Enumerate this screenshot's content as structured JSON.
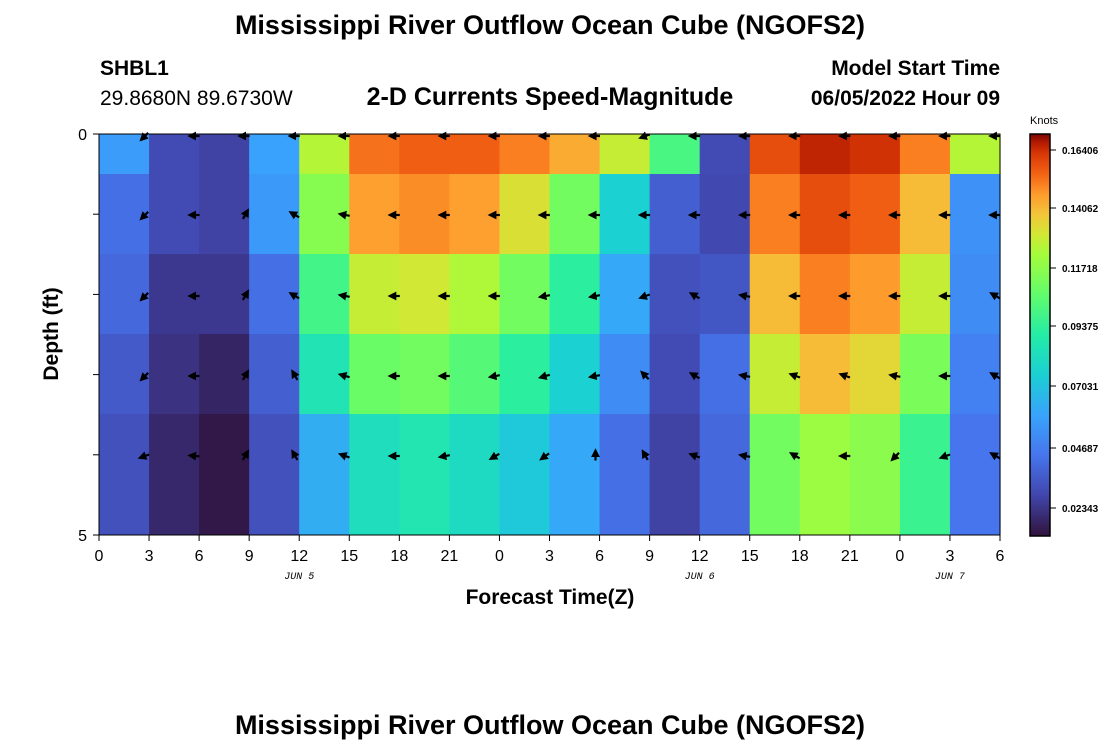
{
  "page": {
    "title": "Mississippi River Outflow Ocean Cube (NGOFS2)",
    "station_id": "SHBL1",
    "station_coords": "29.8680N  89.6730W",
    "subtitle": "2-D Currents Speed-Magnitude",
    "model_start_label": "Model Start Time",
    "model_start_value": "06/05/2022 Hour 09",
    "second_title": "Mississippi River Outflow Ocean Cube (NGOFS2)"
  },
  "chart_data": {
    "type": "heatmap",
    "xlabel": "Forecast Time(Z)",
    "ylabel": "Depth (ft)",
    "ylim": [
      0,
      5
    ],
    "x_tick_labels": [
      "0",
      "3",
      "6",
      "9",
      "12",
      "15",
      "18",
      "21",
      "0",
      "3",
      "6",
      "9",
      "12",
      "15",
      "18",
      "21",
      "0",
      "3",
      "6"
    ],
    "date_labels": [
      {
        "label": "JUN 5",
        "at_index": 4
      },
      {
        "label": "JUN 6",
        "at_index": 12
      },
      {
        "label": "JUN 7",
        "at_index": 17
      }
    ],
    "y_tick_labels": [
      "0",
      "",
      "",
      "",
      "",
      "5"
    ],
    "colorbar": {
      "unit": "Knots",
      "labels": [
        "0.16406",
        "0.14062",
        "0.11718",
        "0.09375",
        "0.07031",
        "0.04687",
        "0.02343"
      ],
      "min": 0.01,
      "max": 0.17
    },
    "depth_layers": 5,
    "time_columns": 18,
    "speed_knots": [
      [
        0.056,
        0.028,
        0.025,
        0.058,
        0.125,
        0.152,
        0.155,
        0.155,
        0.15,
        0.143,
        0.128,
        0.1,
        0.028,
        0.158,
        0.165,
        0.163,
        0.15,
        0.125
      ],
      [
        0.04,
        0.028,
        0.025,
        0.055,
        0.115,
        0.145,
        0.148,
        0.145,
        0.132,
        0.11,
        0.075,
        0.035,
        0.027,
        0.15,
        0.158,
        0.155,
        0.14,
        0.052
      ],
      [
        0.038,
        0.022,
        0.022,
        0.04,
        0.098,
        0.128,
        0.13,
        0.124,
        0.11,
        0.092,
        0.06,
        0.03,
        0.032,
        0.14,
        0.15,
        0.146,
        0.128,
        0.05
      ],
      [
        0.033,
        0.02,
        0.016,
        0.035,
        0.085,
        0.108,
        0.11,
        0.103,
        0.092,
        0.075,
        0.05,
        0.028,
        0.04,
        0.128,
        0.14,
        0.134,
        0.112,
        0.046
      ],
      [
        0.03,
        0.017,
        0.012,
        0.03,
        0.062,
        0.082,
        0.086,
        0.08,
        0.072,
        0.06,
        0.04,
        0.025,
        0.038,
        0.11,
        0.12,
        0.116,
        0.096,
        0.042
      ]
    ],
    "vector_direction_deg": [
      [
        225,
        180,
        180,
        180,
        180,
        180,
        180,
        180,
        180,
        180,
        200,
        180,
        180,
        180,
        180,
        180,
        180,
        180
      ],
      [
        225,
        180,
        60,
        150,
        170,
        180,
        180,
        180,
        180,
        180,
        180,
        180,
        180,
        180,
        180,
        180,
        180,
        180
      ],
      [
        225,
        180,
        60,
        150,
        170,
        180,
        180,
        180,
        190,
        190,
        200,
        150,
        170,
        180,
        180,
        180,
        180,
        150
      ],
      [
        225,
        180,
        60,
        120,
        165,
        180,
        180,
        190,
        195,
        190,
        135,
        150,
        170,
        160,
        160,
        170,
        180,
        150
      ],
      [
        200,
        175,
        60,
        120,
        160,
        180,
        190,
        210,
        215,
        90,
        120,
        160,
        170,
        150,
        180,
        225,
        200,
        150
      ]
    ]
  }
}
